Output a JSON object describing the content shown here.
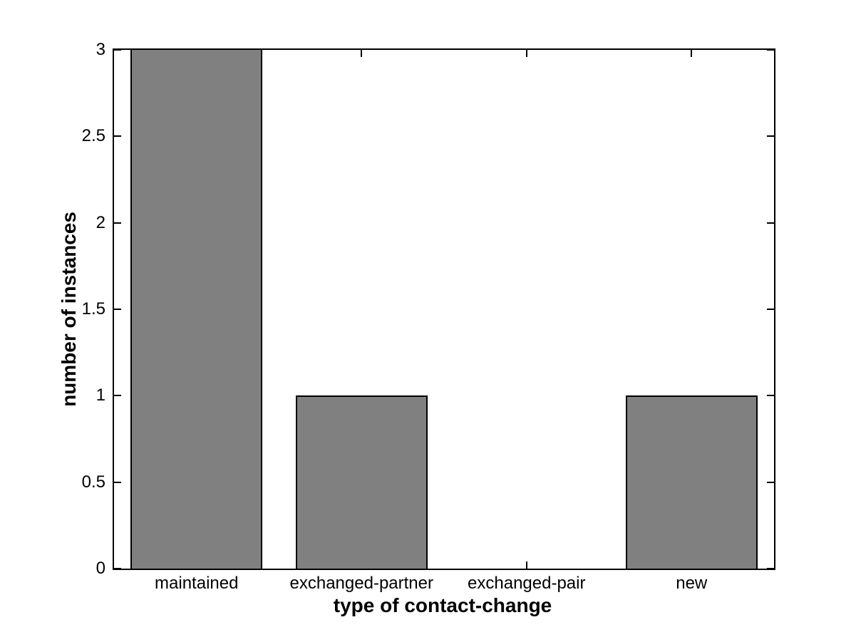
{
  "chart_data": {
    "type": "bar",
    "title": "",
    "xlabel": "type of contact-change",
    "ylabel": "number of instances",
    "categories": [
      "maintained",
      "exchanged-partner",
      "exchanged-pair",
      "new"
    ],
    "values": [
      3,
      1,
      0,
      1
    ],
    "ylim": [
      0,
      3
    ],
    "yticks": [
      0,
      0.5,
      1,
      1.5,
      2,
      2.5,
      3
    ],
    "ytick_labels": [
      "0",
      "0.5",
      "1",
      "1.5",
      "2",
      "2.5",
      "3"
    ],
    "bar_width_fraction": 0.8,
    "grid": false,
    "legend": null,
    "box": true,
    "tick_direction": "in",
    "colors": {
      "bar_fill": "#808080",
      "bar_edge": "#000000",
      "axis": "#000000",
      "text": "#000000",
      "background": "#ffffff"
    }
  }
}
